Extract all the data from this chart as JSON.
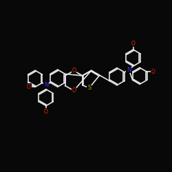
{
  "bg_color": "#080808",
  "bond_color": "#e8e8e8",
  "O_color": "#ff2200",
  "N_color": "#3333ff",
  "S_color": "#ccaa00",
  "bond_width": 1.2,
  "figsize": [
    2.5,
    2.5
  ],
  "dpi": 100,
  "xlim": [
    0,
    10
  ],
  "ylim": [
    0,
    10
  ]
}
